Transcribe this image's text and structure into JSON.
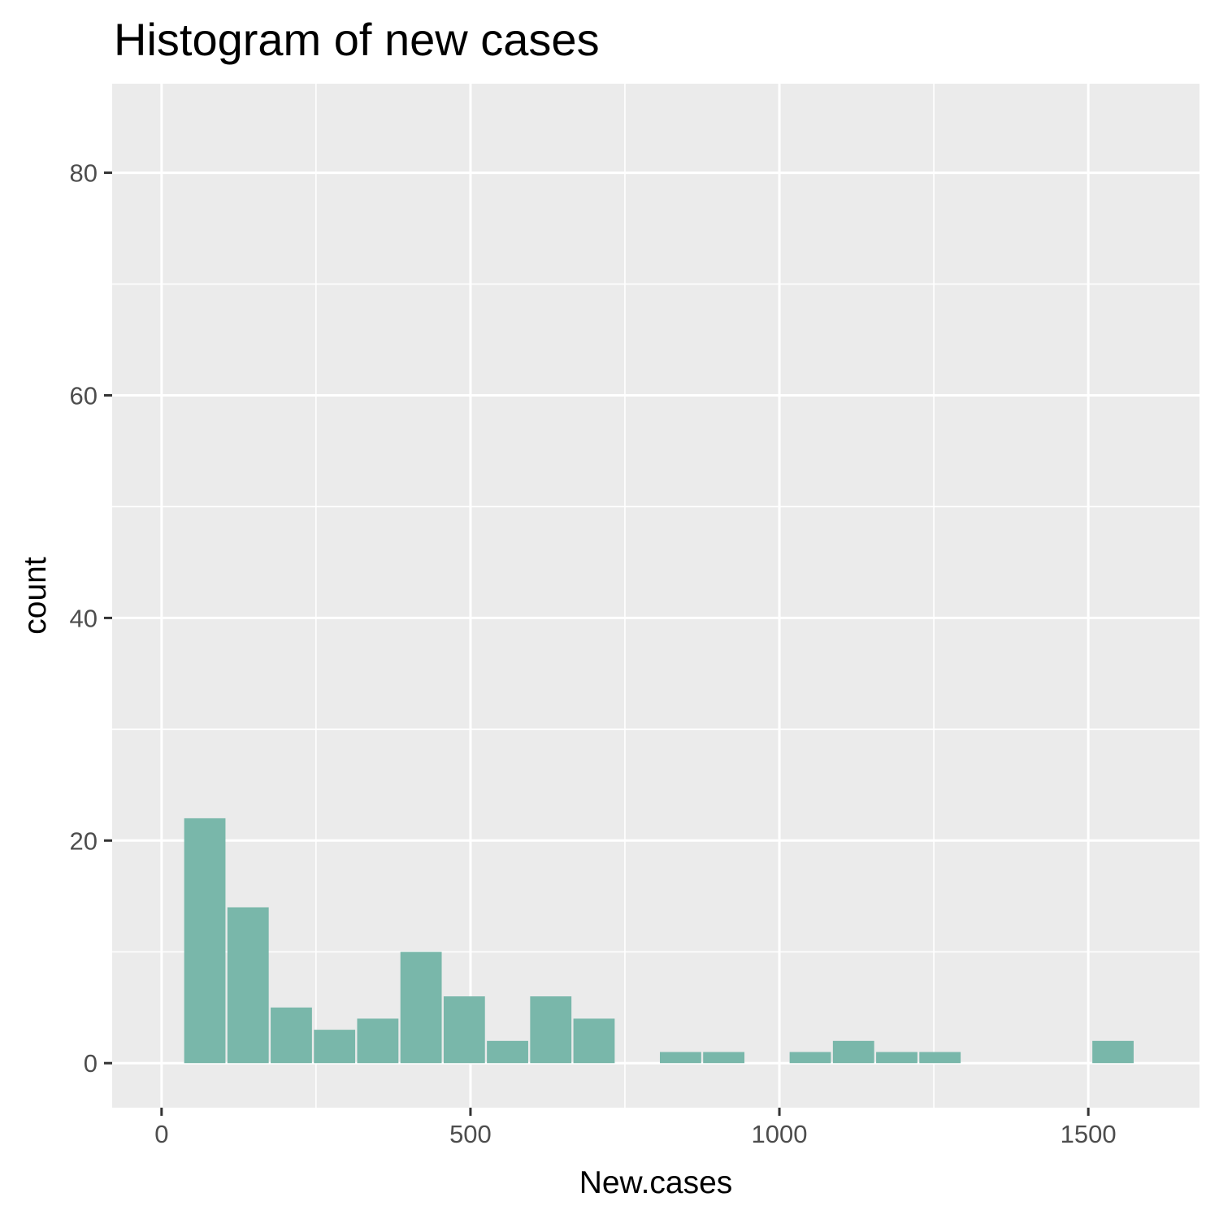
{
  "chart_data": {
    "type": "bar",
    "title": "Histogram of new cases",
    "xlabel": "New.cases",
    "ylabel": "count",
    "xlim": [
      -80,
      1680
    ],
    "ylim": [
      -4,
      88
    ],
    "x_ticks": [
      0,
      500,
      1000,
      1500
    ],
    "x_tick_labels": [
      "0",
      "500",
      "1000",
      "1500"
    ],
    "y_ticks": [
      0,
      20,
      40,
      60,
      80
    ],
    "y_tick_labels": [
      "0",
      "20",
      "40",
      "60",
      "80"
    ],
    "grid": true,
    "bin_width": 70,
    "bins": [
      {
        "x_start": 35,
        "x_end": 105,
        "count": 22
      },
      {
        "x_start": 105,
        "x_end": 175,
        "count": 14
      },
      {
        "x_start": 175,
        "x_end": 245,
        "count": 5
      },
      {
        "x_start": 245,
        "x_end": 315,
        "count": 3
      },
      {
        "x_start": 315,
        "x_end": 385,
        "count": 4
      },
      {
        "x_start": 385,
        "x_end": 455,
        "count": 10
      },
      {
        "x_start": 455,
        "x_end": 525,
        "count": 6
      },
      {
        "x_start": 525,
        "x_end": 595,
        "count": 2
      },
      {
        "x_start": 595,
        "x_end": 665,
        "count": 6
      },
      {
        "x_start": 665,
        "x_end": 735,
        "count": 4
      },
      {
        "x_start": 735,
        "x_end": 805,
        "count": 0
      },
      {
        "x_start": 805,
        "x_end": 875,
        "count": 1
      },
      {
        "x_start": 875,
        "x_end": 945,
        "count": 1
      },
      {
        "x_start": 945,
        "x_end": 1015,
        "count": 0
      },
      {
        "x_start": 1015,
        "x_end": 1085,
        "count": 1
      },
      {
        "x_start": 1085,
        "x_end": 1155,
        "count": 2
      },
      {
        "x_start": 1155,
        "x_end": 1225,
        "count": 1
      },
      {
        "x_start": 1225,
        "x_end": 1295,
        "count": 1
      },
      {
        "x_start": 1295,
        "x_end": 1365,
        "count": 0
      },
      {
        "x_start": 1365,
        "x_end": 1435,
        "count": 0
      },
      {
        "x_start": 1435,
        "x_end": 1505,
        "count": 0
      },
      {
        "x_start": 1505,
        "x_end": 1575,
        "count": 2
      }
    ],
    "colors": {
      "bar_fill": "#79b7aa",
      "panel_background": "#ebebeb",
      "grid": "#ffffff",
      "tick_text": "#4d4d4d",
      "tick_mark": "#333333"
    }
  }
}
